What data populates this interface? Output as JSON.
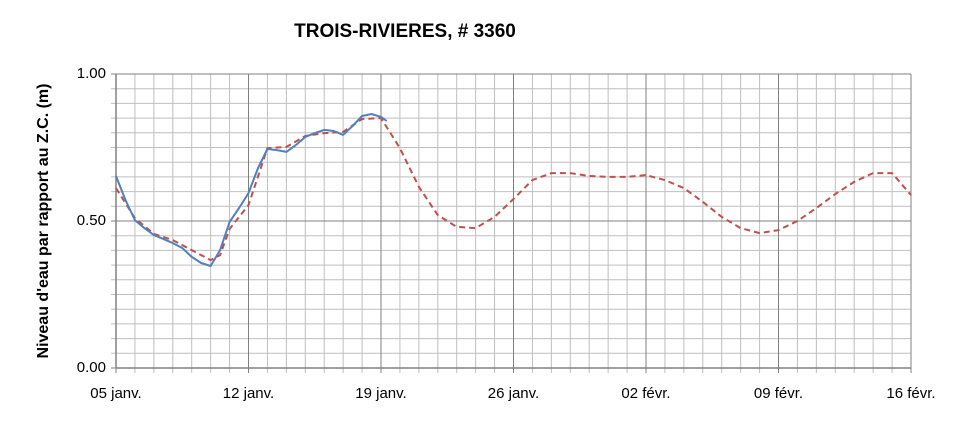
{
  "chart_data": {
    "type": "line",
    "title": "TROIS-RIVIERES, # 3360",
    "y_label": "Niveau d'eau par rapport au Z.C. (m)",
    "xlim": [
      5,
      47
    ],
    "xticks": [
      {
        "value": 5,
        "label": "05 janv."
      },
      {
        "value": 12,
        "label": "12 janv."
      },
      {
        "value": 19,
        "label": "19 janv."
      },
      {
        "value": 26,
        "label": "26 janv."
      },
      {
        "value": 33,
        "label": "02 févr."
      },
      {
        "value": 40,
        "label": "09 févr."
      },
      {
        "value": 47,
        "label": "16 févr."
      }
    ],
    "ylim": [
      0,
      1
    ],
    "yticks": [
      {
        "value": 0,
        "label": "0.00"
      },
      {
        "value": 0.5,
        "label": "0.50"
      },
      {
        "value": 1,
        "label": "1.00"
      }
    ],
    "grid": true,
    "minor_grid": {
      "x": 1,
      "y": 0.05
    },
    "series": [
      {
        "color": "#c0504d",
        "dash": true,
        "x": [
          5,
          6,
          7,
          8,
          9,
          10,
          10.5,
          11,
          12,
          13,
          14,
          15,
          16,
          17,
          18,
          19,
          20,
          21,
          22,
          23,
          24,
          25,
          26,
          27,
          28,
          29,
          30,
          31,
          32,
          33,
          34,
          35,
          36,
          37,
          38,
          39,
          40,
          41,
          42,
          43,
          44,
          45,
          46,
          47
        ],
        "values": [
          0.612,
          0.51,
          0.456,
          0.435,
          0.401,
          0.367,
          0.384,
          0.473,
          0.554,
          0.748,
          0.752,
          0.789,
          0.799,
          0.803,
          0.847,
          0.85,
          0.748,
          0.616,
          0.52,
          0.48,
          0.476,
          0.514,
          0.575,
          0.639,
          0.663,
          0.663,
          0.653,
          0.65,
          0.65,
          0.656,
          0.639,
          0.612,
          0.565,
          0.514,
          0.476,
          0.459,
          0.469,
          0.5,
          0.544,
          0.592,
          0.633,
          0.663,
          0.663,
          0.588
        ]
      },
      {
        "color": "#4f81bd",
        "dash": false,
        "x": [
          5,
          5.5,
          6,
          6.5,
          7,
          7.5,
          8,
          8.5,
          9,
          9.5,
          10,
          10.5,
          11,
          11.5,
          12,
          12.5,
          13,
          13.5,
          14,
          14.5,
          15,
          15.5,
          16,
          16.5,
          17,
          17.5,
          18,
          18.5,
          19,
          19.3
        ],
        "values": [
          0.653,
          0.571,
          0.503,
          0.476,
          0.452,
          0.439,
          0.425,
          0.408,
          0.378,
          0.357,
          0.347,
          0.401,
          0.497,
          0.544,
          0.595,
          0.68,
          0.745,
          0.741,
          0.735,
          0.758,
          0.786,
          0.799,
          0.81,
          0.806,
          0.793,
          0.823,
          0.857,
          0.864,
          0.854,
          0.84
        ]
      }
    ]
  }
}
